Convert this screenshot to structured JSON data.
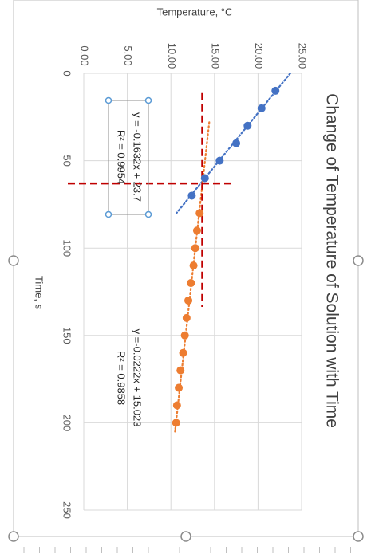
{
  "chart_data": {
    "type": "scatter",
    "title": "Change of Temperature of Solution with Time",
    "xlabel": "Time, s",
    "ylabel": "Temperature, °C",
    "xlim": [
      0,
      250
    ],
    "ylim": [
      0,
      25
    ],
    "xticks": [
      "0",
      "50",
      "100",
      "150",
      "200",
      "250"
    ],
    "yticks": [
      "0.00",
      "5.00",
      "10.00",
      "15.00",
      "20.00",
      "25.00"
    ],
    "grid": true,
    "series": [
      {
        "color": "#4472c4",
        "points": [
          [
            10,
            22.0
          ],
          [
            20,
            20.4
          ],
          [
            30,
            18.8
          ],
          [
            40,
            17.5
          ],
          [
            50,
            15.6
          ],
          [
            60,
            13.9
          ],
          [
            70,
            12.4
          ]
        ],
        "trendline": {
          "x": [
            0,
            80
          ],
          "equation": "y = -0.1632x + 23.7",
          "r2": "R² = 0.9954"
        }
      },
      {
        "color": "#ed7d31",
        "points": [
          [
            80,
            13.3
          ],
          [
            90,
            13.0
          ],
          [
            100,
            12.8
          ],
          [
            110,
            12.6
          ],
          [
            120,
            12.3
          ],
          [
            130,
            12.0
          ],
          [
            140,
            11.8
          ],
          [
            150,
            11.6
          ],
          [
            160,
            11.4
          ],
          [
            170,
            11.1
          ],
          [
            180,
            10.9
          ],
          [
            190,
            10.7
          ],
          [
            200,
            10.6
          ]
        ],
        "trendline": {
          "x": [
            28,
            205
          ],
          "equation": "y =-0.0222x + 15.023",
          "r2": "R² = 0.9858"
        }
      }
    ],
    "guides": {
      "color": "#c00000",
      "x_value": 63,
      "y_value": 13.6
    }
  }
}
